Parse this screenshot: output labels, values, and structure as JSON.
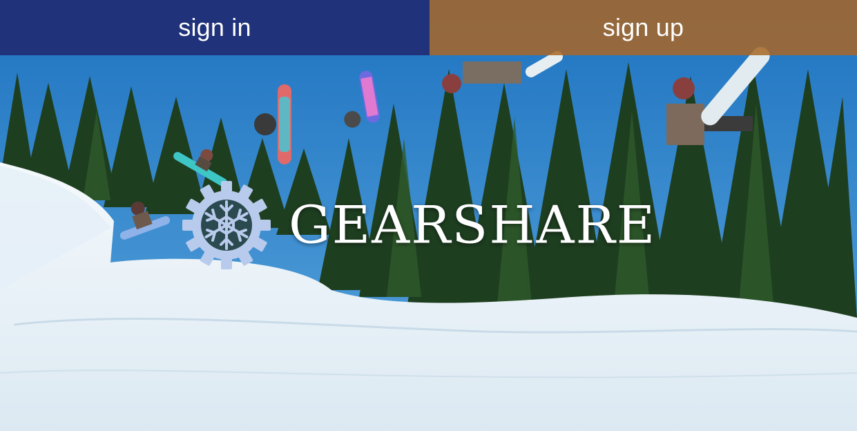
{
  "nav": {
    "sign_in_label": "sign in",
    "sign_up_label": "sign up",
    "sign_in_color": "#1f2f78",
    "sign_up_color": "#a86727"
  },
  "brand": {
    "name": "GEARSHARE",
    "logo_icon": "gear-snowflake-icon",
    "logo_color": "#b9cbec"
  },
  "hero": {
    "sky_color": "#2a7fc9",
    "tree_color": "#1d3d1e",
    "snow_color": "#eef5fa"
  }
}
